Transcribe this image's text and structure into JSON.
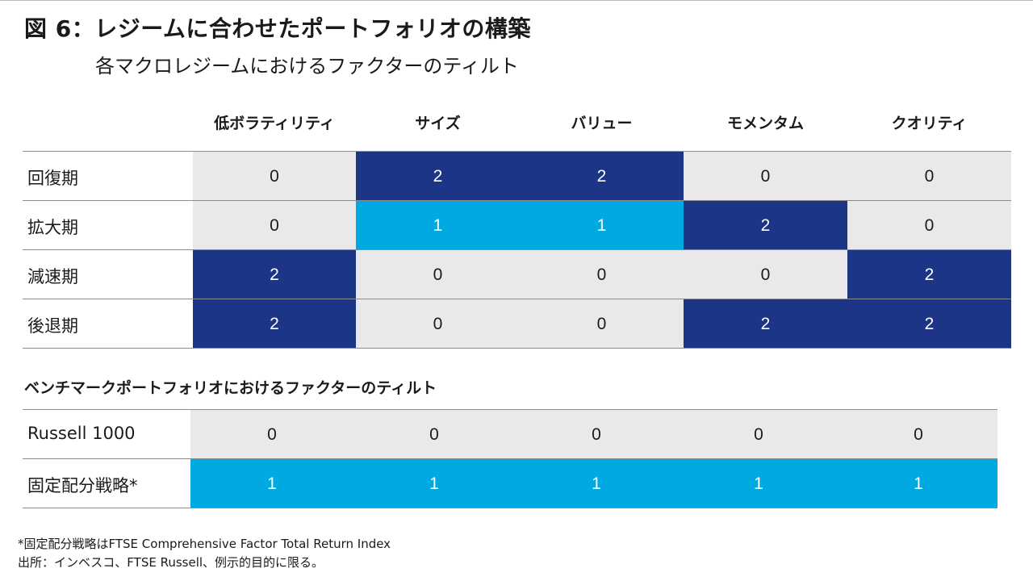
{
  "title": "図 6：レジームに合わせたポートフォリオの構築",
  "subtitle": "各マクロレジームにおけるファクターのティルト",
  "colors": {
    "gray": "#e9e9eb",
    "navy": "#1c3587",
    "cyan": "#01a9e2",
    "text_dark": "#1a1a1a",
    "text_light": "#ffffff"
  },
  "columns": [
    "低ボラティリティ",
    "サイズ",
    "バリュー",
    "モメンタム",
    "クオリティ"
  ],
  "regimes": [
    {
      "label": "回復期",
      "values": [
        "0",
        "2",
        "2",
        "0",
        "0"
      ],
      "fills": [
        "gray",
        "navy",
        "navy",
        "gray",
        "gray"
      ]
    },
    {
      "label": "拡大期",
      "values": [
        "0",
        "1",
        "1",
        "2",
        "0"
      ],
      "fills": [
        "gray",
        "cyan",
        "cyan",
        "navy",
        "gray"
      ]
    },
    {
      "label": "減速期",
      "values": [
        "2",
        "0",
        "0",
        "0",
        "2"
      ],
      "fills": [
        "navy",
        "gray",
        "gray",
        "gray",
        "navy"
      ]
    },
    {
      "label": "後退期",
      "values": [
        "2",
        "0",
        "0",
        "2",
        "2"
      ],
      "fills": [
        "navy",
        "gray",
        "gray",
        "navy",
        "navy"
      ]
    }
  ],
  "benchmark": {
    "heading": "ベンチマークポートフォリオにおけるファクターのティルト",
    "rows": [
      {
        "label": "Russell 1000",
        "values": [
          "0",
          "0",
          "0",
          "0",
          "0"
        ],
        "fills": [
          "gray",
          "gray",
          "gray",
          "gray",
          "gray"
        ]
      },
      {
        "label": "固定配分戦略*",
        "values": [
          "1",
          "1",
          "1",
          "1",
          "1"
        ],
        "fills": [
          "cyan",
          "cyan",
          "cyan",
          "cyan",
          "cyan"
        ]
      }
    ]
  },
  "footnotes": [
    "*固定配分戦略はFTSE Comprehensive Factor Total Return Index",
    "出所：インベスコ、FTSE Russell、例示的目的に限る。"
  ]
}
